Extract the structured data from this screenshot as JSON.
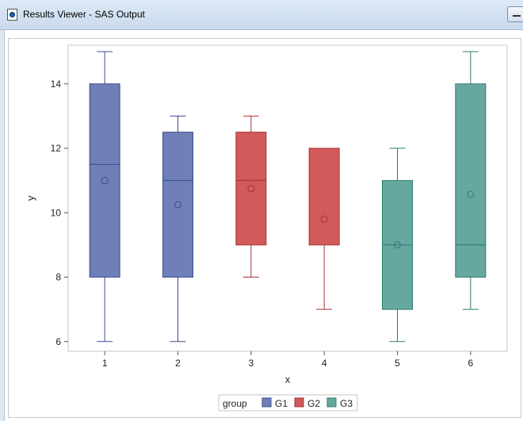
{
  "window": {
    "title": "Results Viewer - SAS Output"
  },
  "chart_data": {
    "type": "box",
    "xlabel": "x",
    "ylabel": "y",
    "ylim": [
      5.7,
      15.2
    ],
    "yticks": [
      6,
      8,
      10,
      12,
      14
    ],
    "legend": {
      "title": "group",
      "placement": "bottom"
    },
    "groups": [
      {
        "name": "G1",
        "color": "#6f7fb7",
        "line": "#3c4c8e"
      },
      {
        "name": "G2",
        "color": "#d35a5a",
        "line": "#a83232"
      },
      {
        "name": "G3",
        "color": "#66a8a0",
        "line": "#2e7a70"
      }
    ],
    "boxes": [
      {
        "x": "1",
        "group": "G1",
        "min": 6,
        "q1": 8,
        "median": 11.5,
        "q3": 14,
        "max": 15,
        "mean": 11
      },
      {
        "x": "2",
        "group": "G1",
        "min": 6,
        "q1": 8,
        "median": 11,
        "q3": 12.5,
        "max": 13,
        "mean": 10.25
      },
      {
        "x": "3",
        "group": "G2",
        "min": 8,
        "q1": 9,
        "median": 11,
        "q3": 12.5,
        "max": 13,
        "mean": 10.75
      },
      {
        "x": "4",
        "group": "G2",
        "min": 7,
        "q1": 9,
        "median": 12,
        "q3": 12,
        "max": 12,
        "mean": 9.8
      },
      {
        "x": "5",
        "group": "G3",
        "min": 6,
        "q1": 7,
        "median": 9,
        "q3": 11,
        "max": 12,
        "mean": 9
      },
      {
        "x": "6",
        "group": "G3",
        "min": 7,
        "q1": 8,
        "median": 9,
        "q3": 14,
        "max": 15,
        "mean": 10.57
      }
    ]
  }
}
